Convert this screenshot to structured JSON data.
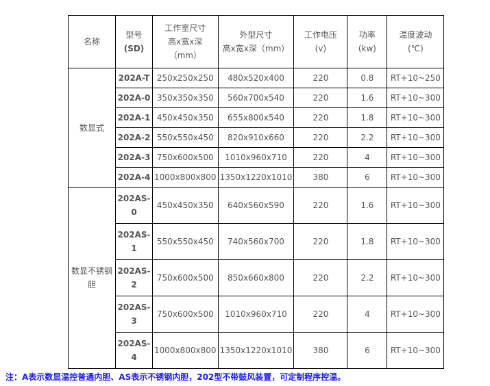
{
  "headers": [
    [
      "名称"
    ],
    [
      "型号",
      "(SD)"
    ],
    [
      "工作室尺寸",
      "高x宽x深",
      "（mm）"
    ],
    [
      "外型尺寸",
      "高x宽x深（mm）"
    ],
    [
      "工作电压",
      "(v)"
    ],
    [
      "功率",
      "(kw)"
    ],
    [
      "温度波动",
      "(℃)"
    ]
  ],
  "groups": [
    {
      "name": "数显式",
      "rows": [
        [
          "202A-T",
          "250x250x250",
          "480x520x400",
          "220",
          "0.8",
          "RT+10~250"
        ],
        [
          "202A-0",
          "350x350x350",
          "560x700x540",
          "220",
          "1.6",
          "RT+10~300"
        ],
        [
          "202A-1",
          "450x450x350",
          "655x800x540",
          "220",
          "1.8",
          "RT+10~300"
        ],
        [
          "202A-2",
          "550x550x450",
          "820x910x660",
          "220",
          "2.2",
          "RT+10~300"
        ],
        [
          "202A-3",
          "750x600x500",
          "1010x960x710",
          "220",
          "4",
          "RT+10~300"
        ],
        [
          "202A-4",
          "1000x800x800",
          "1350x1220x1010",
          "380",
          "6",
          "RT+10~300"
        ]
      ]
    },
    {
      "name": "数显不锈钢胆",
      "rows": [
        [
          "202AS-0",
          "450x450x350",
          "640x560x590",
          "220",
          "1.6",
          "RT+10~300"
        ],
        [
          "202AS-1",
          "550x550x450",
          "740x560x700",
          "220",
          "1.8",
          "RT+10~300"
        ],
        [
          "202AS-2",
          "750x600x500",
          "850x660x800",
          "220",
          "2.2",
          "RT+10~300"
        ],
        [
          "202AS-3",
          "750x600x500",
          "1010x960x710",
          "220",
          "4",
          "RT+10~300"
        ],
        [
          "202AS-4",
          "1000x800x800",
          "1350x1220x1010",
          "380",
          "6",
          "RT+10~300"
        ]
      ]
    }
  ],
  "note": "注：A表示数显温控普通内胆、AS表示不锈钢内胆，202型不带鼓风装置，可定制程序控温。",
  "colors": {
    "note": "#1a1aff",
    "text": "#555555",
    "border": "#000000"
  }
}
